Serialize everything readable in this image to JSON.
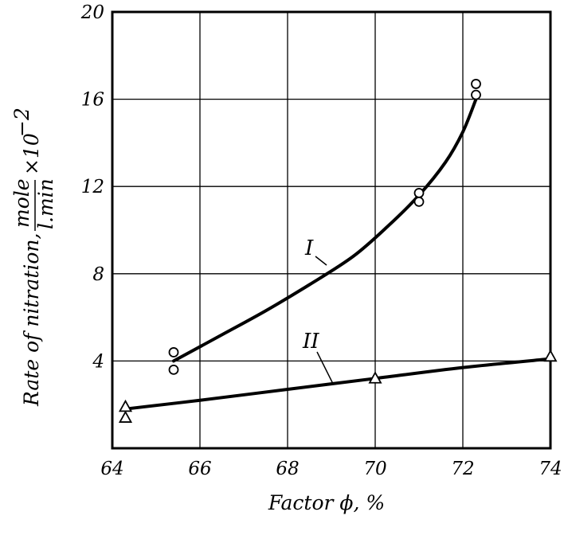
{
  "chart_data": {
    "type": "line",
    "xlabel": "Factor ϕ, %",
    "ylabel": {
      "prefix": "Rate of nitration,",
      "fraction_numerator": "mole",
      "fraction_denominator": "l.min",
      "multiplier": "×10",
      "exponent": "−2"
    },
    "xlim": [
      64,
      74
    ],
    "ylim": [
      0,
      20
    ],
    "x_ticks": [
      64,
      66,
      68,
      70,
      72,
      74
    ],
    "y_ticks": [
      4,
      8,
      12,
      16,
      20
    ],
    "x_tick_labels": [
      "64",
      "66",
      "68",
      "70",
      "72",
      "74"
    ],
    "y_tick_labels": [
      "4",
      "8",
      "12",
      "16",
      "20"
    ],
    "grid": true,
    "series": [
      {
        "name": "I",
        "marker": "circle",
        "curve": [
          [
            65.4,
            4.0
          ],
          [
            66.5,
            5.2
          ],
          [
            67.5,
            6.3
          ],
          [
            68.5,
            7.5
          ],
          [
            69.5,
            8.8
          ],
          [
            70.3,
            10.2
          ],
          [
            71.0,
            11.6
          ],
          [
            71.6,
            13.1
          ],
          [
            72.0,
            14.5
          ],
          [
            72.3,
            16.0
          ]
        ],
        "points": [
          [
            65.4,
            4.4
          ],
          [
            65.4,
            3.6
          ],
          [
            71.0,
            11.7
          ],
          [
            71.0,
            11.3
          ],
          [
            72.3,
            16.7
          ],
          [
            72.3,
            16.2
          ]
        ]
      },
      {
        "name": "II",
        "marker": "triangle",
        "curve": [
          [
            64.3,
            1.8
          ],
          [
            66.0,
            2.2
          ],
          [
            68.0,
            2.7
          ],
          [
            70.0,
            3.2
          ],
          [
            72.0,
            3.7
          ],
          [
            74.0,
            4.1
          ]
        ],
        "points": [
          [
            64.3,
            1.9
          ],
          [
            64.3,
            1.4
          ],
          [
            70.0,
            3.2
          ],
          [
            74.0,
            4.2
          ]
        ]
      }
    ],
    "annotations": [
      {
        "text": "I",
        "series": "I"
      },
      {
        "text": "II",
        "series": "II"
      }
    ]
  }
}
